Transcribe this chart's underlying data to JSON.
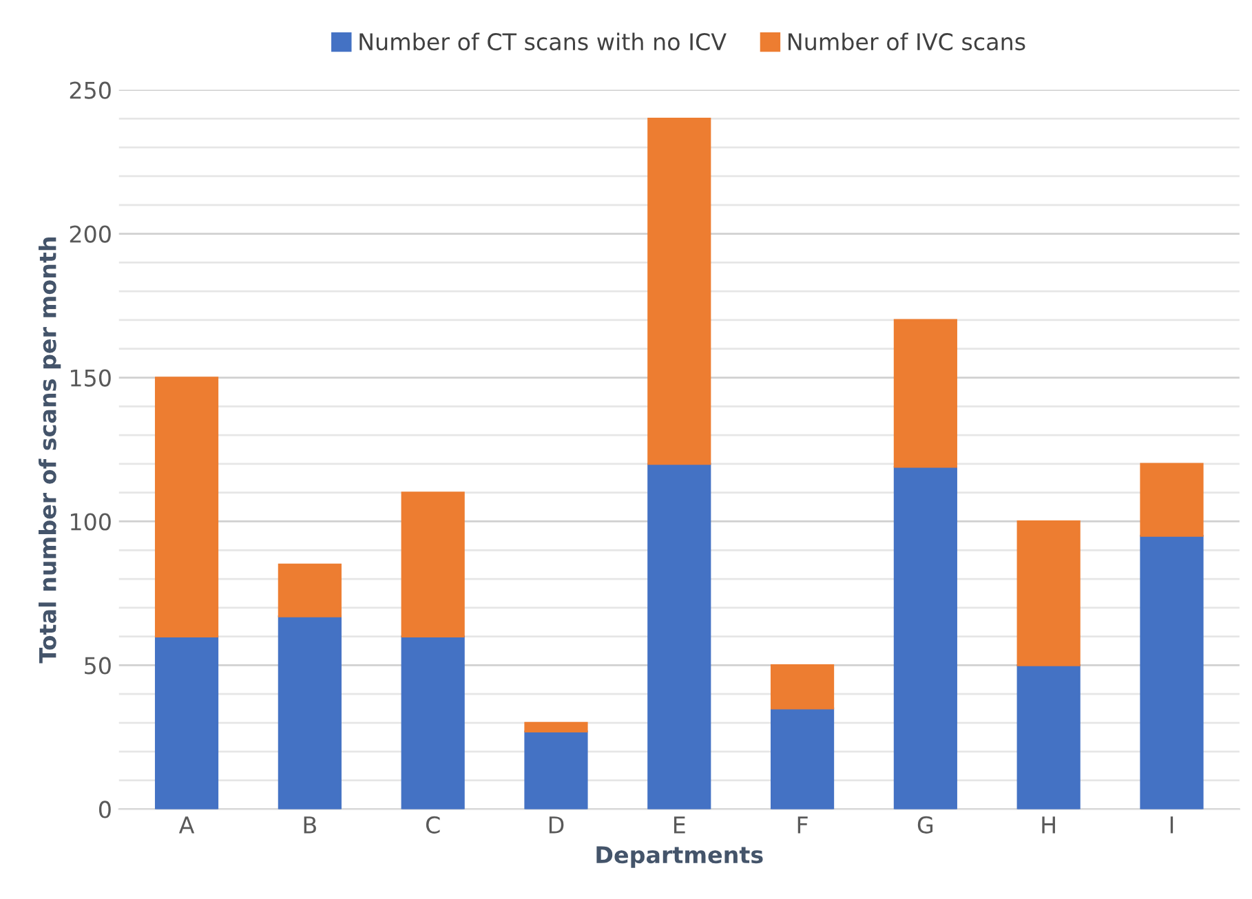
{
  "chart_data": {
    "type": "bar",
    "stacked": true,
    "xlabel": "Departments",
    "ylabel": "Total number of scans per month",
    "categories": [
      "A",
      "B",
      "C",
      "D",
      "E",
      "F",
      "G",
      "H",
      "I"
    ],
    "series": [
      {
        "name": "Number of CT scans with no ICV",
        "color": "#4472c4",
        "values": [
          60,
          67,
          60,
          27,
          120,
          35,
          119,
          50,
          95
        ]
      },
      {
        "name": "Number of IVC scans",
        "color": "#ed7d31",
        "values": [
          90,
          18,
          50,
          3,
          120,
          15,
          51,
          50,
          25
        ]
      }
    ],
    "ylim": [
      0,
      250
    ],
    "yticks": [
      0,
      {
        "value": 10,
        "label": null
      },
      {
        "value": 20,
        "label": null
      },
      {
        "value": 30,
        "label": null
      },
      {
        "value": 40,
        "label": null
      },
      50,
      {
        "value": 60,
        "label": null
      },
      {
        "value": 70,
        "label": null
      },
      {
        "value": 80,
        "label": null
      },
      {
        "value": 90,
        "label": null
      },
      100,
      {
        "value": 110,
        "label": null
      },
      {
        "value": 120,
        "label": null
      },
      {
        "value": 130,
        "label": null
      },
      {
        "value": 140,
        "label": null
      },
      150,
      {
        "value": 160,
        "label": null
      },
      {
        "value": 170,
        "label": null
      },
      {
        "value": 180,
        "label": null
      },
      {
        "value": 190,
        "label": null
      },
      200,
      {
        "value": 210,
        "label": null
      },
      {
        "value": 220,
        "label": null
      },
      {
        "value": 230,
        "label": null
      },
      {
        "value": 240,
        "label": null
      },
      250
    ],
    "grid": "y",
    "legend": "top"
  }
}
